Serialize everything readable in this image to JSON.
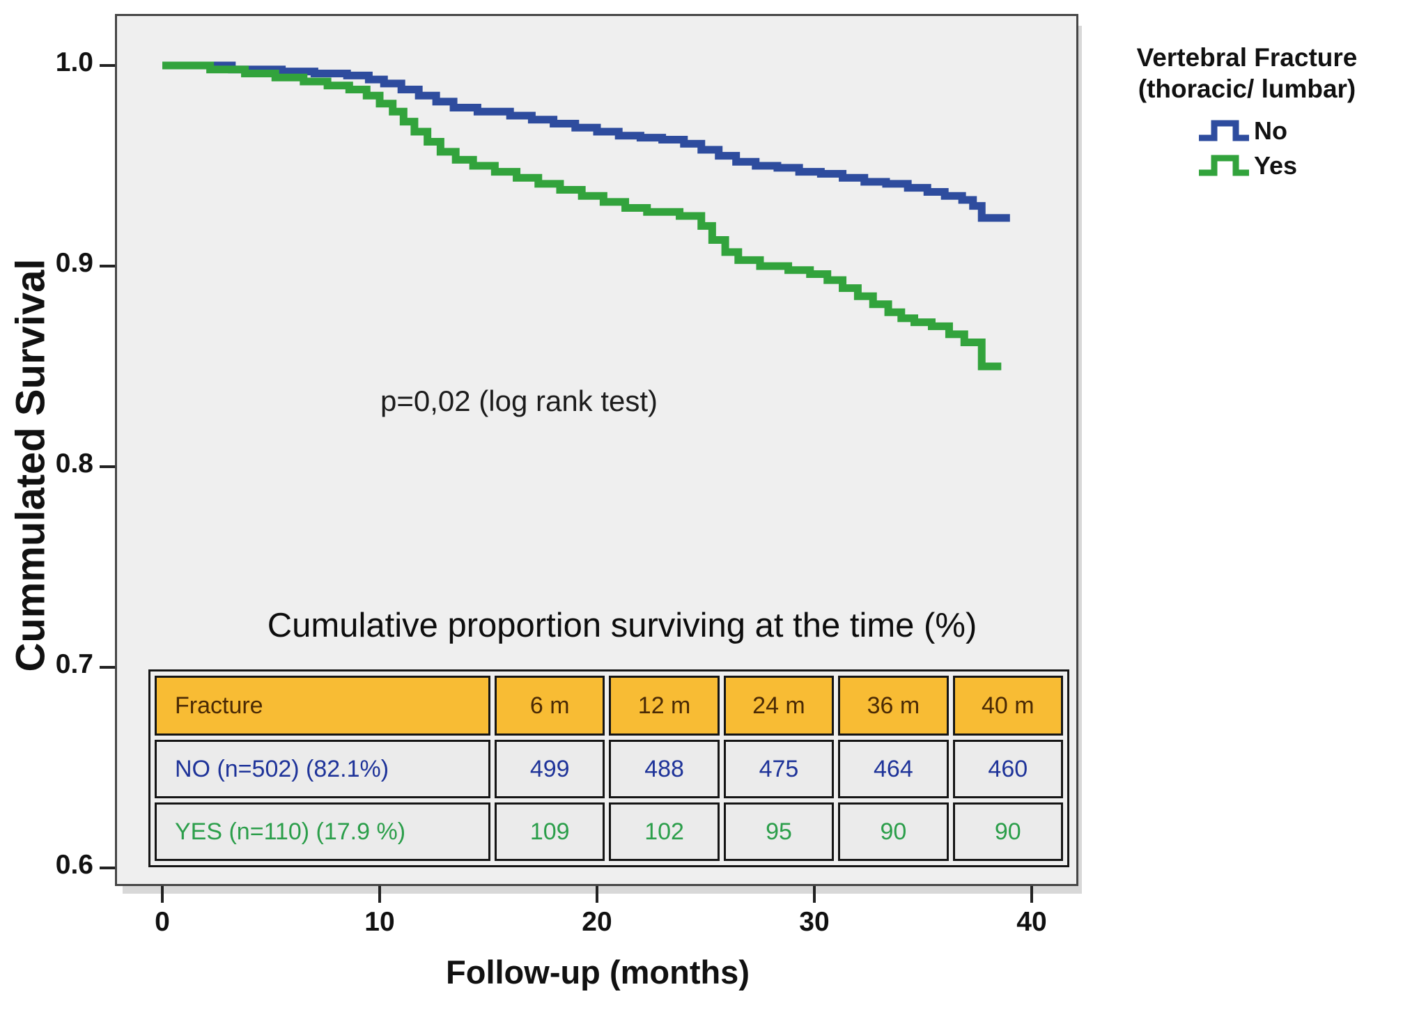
{
  "chart_data": {
    "type": "line",
    "subtype": "kaplan-meier-step-survival",
    "title": "",
    "xlabel": "Follow-up (months)",
    "ylabel": "Cummulated Survival",
    "xlim": [
      0,
      42
    ],
    "ylim": [
      0.58,
      1.02
    ],
    "grid": false,
    "annotation": "p=0,02 (log rank test)",
    "plot_bg_color": "#EFEFEF",
    "x_ticks": [
      {
        "value": 0,
        "label": "0"
      },
      {
        "value": 10,
        "label": "10"
      },
      {
        "value": 20,
        "label": "20"
      },
      {
        "value": 30,
        "label": "30"
      },
      {
        "value": 40,
        "label": "40"
      }
    ],
    "y_ticks": [
      {
        "value": 1.0,
        "label": "1.0"
      },
      {
        "value": 0.9,
        "label": "0.9"
      },
      {
        "value": 0.8,
        "label": "0.8"
      },
      {
        "value": 0.7,
        "label": "0.7"
      },
      {
        "value": 0.6,
        "label": "0.6"
      }
    ],
    "legend": {
      "position": "right",
      "title_line1": "Vertebral Fracture",
      "title_line2": "(thoracic/ lumbar)",
      "entries": [
        {
          "label": "No",
          "color": "#2E4C9E"
        },
        {
          "label": "Yes",
          "color": "#32A33C"
        }
      ]
    },
    "series": [
      {
        "name": "No",
        "color": "#2E4C9E",
        "step": "post",
        "end_x": 39.0,
        "points": [
          [
            0,
            1.0
          ],
          [
            3.2,
            0.998
          ],
          [
            5.5,
            0.997
          ],
          [
            7.0,
            0.996
          ],
          [
            8.5,
            0.995
          ],
          [
            9.5,
            0.993
          ],
          [
            10.2,
            0.991
          ],
          [
            11.0,
            0.988
          ],
          [
            11.8,
            0.985
          ],
          [
            12.6,
            0.982
          ],
          [
            13.4,
            0.979
          ],
          [
            14.5,
            0.977
          ],
          [
            16.0,
            0.975
          ],
          [
            17.0,
            0.973
          ],
          [
            18.0,
            0.971
          ],
          [
            19.0,
            0.969
          ],
          [
            20.0,
            0.967
          ],
          [
            21.0,
            0.965
          ],
          [
            22.0,
            0.964
          ],
          [
            23.0,
            0.963
          ],
          [
            24.0,
            0.961
          ],
          [
            24.8,
            0.958
          ],
          [
            25.6,
            0.955
          ],
          [
            26.4,
            0.952
          ],
          [
            27.3,
            0.95
          ],
          [
            28.3,
            0.949
          ],
          [
            29.3,
            0.947
          ],
          [
            30.3,
            0.946
          ],
          [
            31.3,
            0.944
          ],
          [
            32.3,
            0.942
          ],
          [
            33.3,
            0.941
          ],
          [
            34.3,
            0.939
          ],
          [
            35.2,
            0.937
          ],
          [
            36.0,
            0.935
          ],
          [
            36.8,
            0.933
          ],
          [
            37.3,
            0.93
          ],
          [
            37.7,
            0.924
          ]
        ]
      },
      {
        "name": "Yes",
        "color": "#32A33C",
        "step": "post",
        "end_x": 38.6,
        "points": [
          [
            0,
            1.0
          ],
          [
            2.2,
            0.998
          ],
          [
            3.8,
            0.996
          ],
          [
            5.2,
            0.994
          ],
          [
            6.5,
            0.992
          ],
          [
            7.6,
            0.99
          ],
          [
            8.6,
            0.988
          ],
          [
            9.4,
            0.985
          ],
          [
            10.0,
            0.981
          ],
          [
            10.6,
            0.977
          ],
          [
            11.1,
            0.972
          ],
          [
            11.6,
            0.967
          ],
          [
            12.2,
            0.962
          ],
          [
            12.8,
            0.957
          ],
          [
            13.5,
            0.953
          ],
          [
            14.3,
            0.95
          ],
          [
            15.3,
            0.947
          ],
          [
            16.3,
            0.944
          ],
          [
            17.3,
            0.941
          ],
          [
            18.3,
            0.938
          ],
          [
            19.3,
            0.935
          ],
          [
            20.3,
            0.932
          ],
          [
            21.3,
            0.929
          ],
          [
            22.3,
            0.927
          ],
          [
            23.8,
            0.925
          ],
          [
            24.8,
            0.92
          ],
          [
            25.3,
            0.913
          ],
          [
            25.9,
            0.907
          ],
          [
            26.5,
            0.903
          ],
          [
            27.5,
            0.9
          ],
          [
            28.8,
            0.898
          ],
          [
            29.8,
            0.896
          ],
          [
            30.6,
            0.893
          ],
          [
            31.3,
            0.889
          ],
          [
            32.0,
            0.885
          ],
          [
            32.7,
            0.881
          ],
          [
            33.4,
            0.877
          ],
          [
            34.0,
            0.874
          ],
          [
            34.6,
            0.872
          ],
          [
            35.4,
            0.87
          ],
          [
            36.2,
            0.866
          ],
          [
            36.9,
            0.862
          ],
          [
            37.7,
            0.85
          ]
        ]
      }
    ],
    "inset_table": {
      "title": "Cumulative proportion surviving at the time (%)",
      "header_bg": "#F8BC34",
      "header_text_color": "#4A2A05",
      "header": [
        "Fracture",
        "6 m",
        "12 m",
        "24 m",
        "36 m",
        "40 m"
      ],
      "rows": [
        {
          "label": "NO (n=502) (82.1%)",
          "color": "#1E3399",
          "values": [
            "499",
            "488",
            "475",
            "464",
            "460"
          ]
        },
        {
          "label": "YES (n=110) (17.9 %)",
          "color": "#2B9E4A",
          "values": [
            "109",
            "102",
            "95",
            "90",
            "90"
          ]
        }
      ]
    }
  }
}
